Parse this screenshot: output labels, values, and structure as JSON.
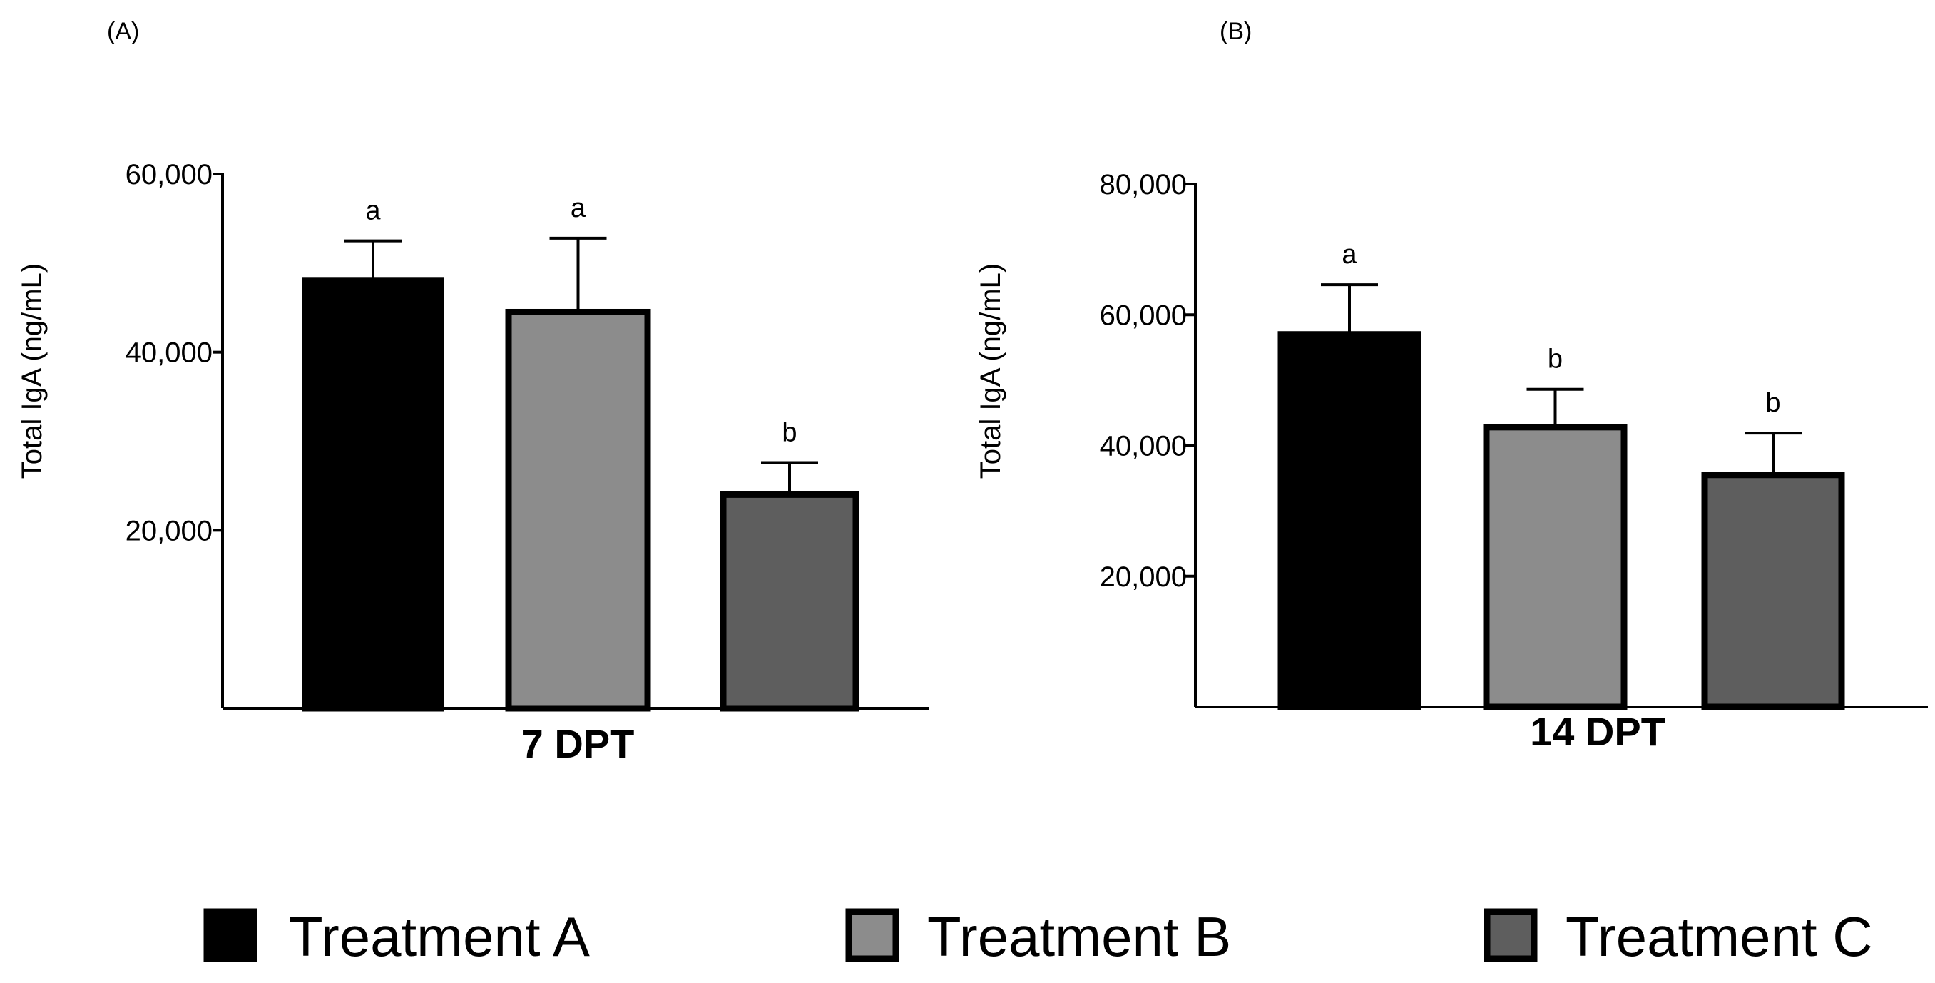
{
  "legend": [
    {
      "name": "Treatment A",
      "color": "#000000"
    },
    {
      "name": "Treatment B",
      "color": "#8c8c8c"
    },
    {
      "name": "Treatment C",
      "color": "#5e5e5e"
    }
  ],
  "chart_data": [
    {
      "panel": "(A)",
      "type": "bar",
      "ylabel": "Total IgA (ng/mL)",
      "xlabel": "7 DPT",
      "ylim": [
        0,
        60000
      ],
      "yticks": [
        {
          "value": 20000,
          "label": "20,000"
        },
        {
          "value": 40000,
          "label": "40,000"
        },
        {
          "value": 60000,
          "label": "60,000"
        }
      ],
      "series": [
        {
          "name": "Treatment A",
          "value": 48000,
          "error": 4500,
          "sig": "a"
        },
        {
          "name": "Treatment B",
          "value": 44500,
          "error": 8300,
          "sig": "a"
        },
        {
          "name": "Treatment C",
          "value": 24000,
          "error": 3600,
          "sig": "b"
        }
      ]
    },
    {
      "panel": "(B)",
      "type": "bar",
      "ylabel": "Total IgA (ng/mL)",
      "xlabel": "14 DPT",
      "ylim": [
        0,
        80000
      ],
      "yticks": [
        {
          "value": 20000,
          "label": "20,000"
        },
        {
          "value": 40000,
          "label": "40,000"
        },
        {
          "value": 60000,
          "label": "60,000"
        },
        {
          "value": 80000,
          "label": "80,000"
        }
      ],
      "series": [
        {
          "name": "Treatment A",
          "value": 57000,
          "error": 7600,
          "sig": "a"
        },
        {
          "name": "Treatment B",
          "value": 42800,
          "error": 5800,
          "sig": "b"
        },
        {
          "name": "Treatment C",
          "value": 35500,
          "error": 6400,
          "sig": "b"
        }
      ]
    }
  ]
}
